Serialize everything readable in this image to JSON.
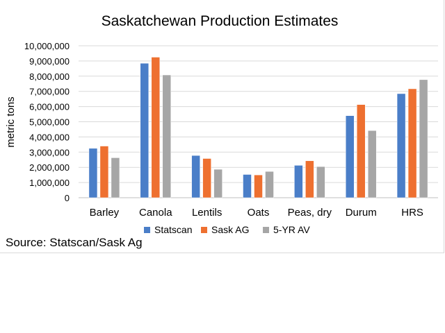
{
  "source_text": "Source: Statscan/Sask Ag",
  "chart_data": {
    "type": "bar",
    "title": "Saskatchewan Production Estimates",
    "xlabel": "",
    "ylabel": "metric tons",
    "ylim": [
      0,
      10000000
    ],
    "yticks": [
      0,
      1000000,
      2000000,
      3000000,
      4000000,
      5000000,
      6000000,
      7000000,
      8000000,
      9000000,
      10000000
    ],
    "grid": true,
    "legend_position": "bottom",
    "categories": [
      "Barley",
      "Canola",
      "Lentils",
      "Oats",
      "Peas, dry",
      "Durum",
      "HRS"
    ],
    "series": [
      {
        "name": "Statscan",
        "color": "#4A7EC8",
        "values": [
          3250000,
          8850000,
          2780000,
          1530000,
          2130000,
          5400000,
          6850000
        ]
      },
      {
        "name": "Sask AG",
        "color": "#EE7030",
        "values": [
          3400000,
          9250000,
          2580000,
          1500000,
          2430000,
          6130000,
          7170000
        ]
      },
      {
        "name": "5-YR AV",
        "color": "#A6A6A6",
        "values": [
          2630000,
          8080000,
          1870000,
          1730000,
          2050000,
          4420000,
          7770000
        ]
      }
    ]
  }
}
